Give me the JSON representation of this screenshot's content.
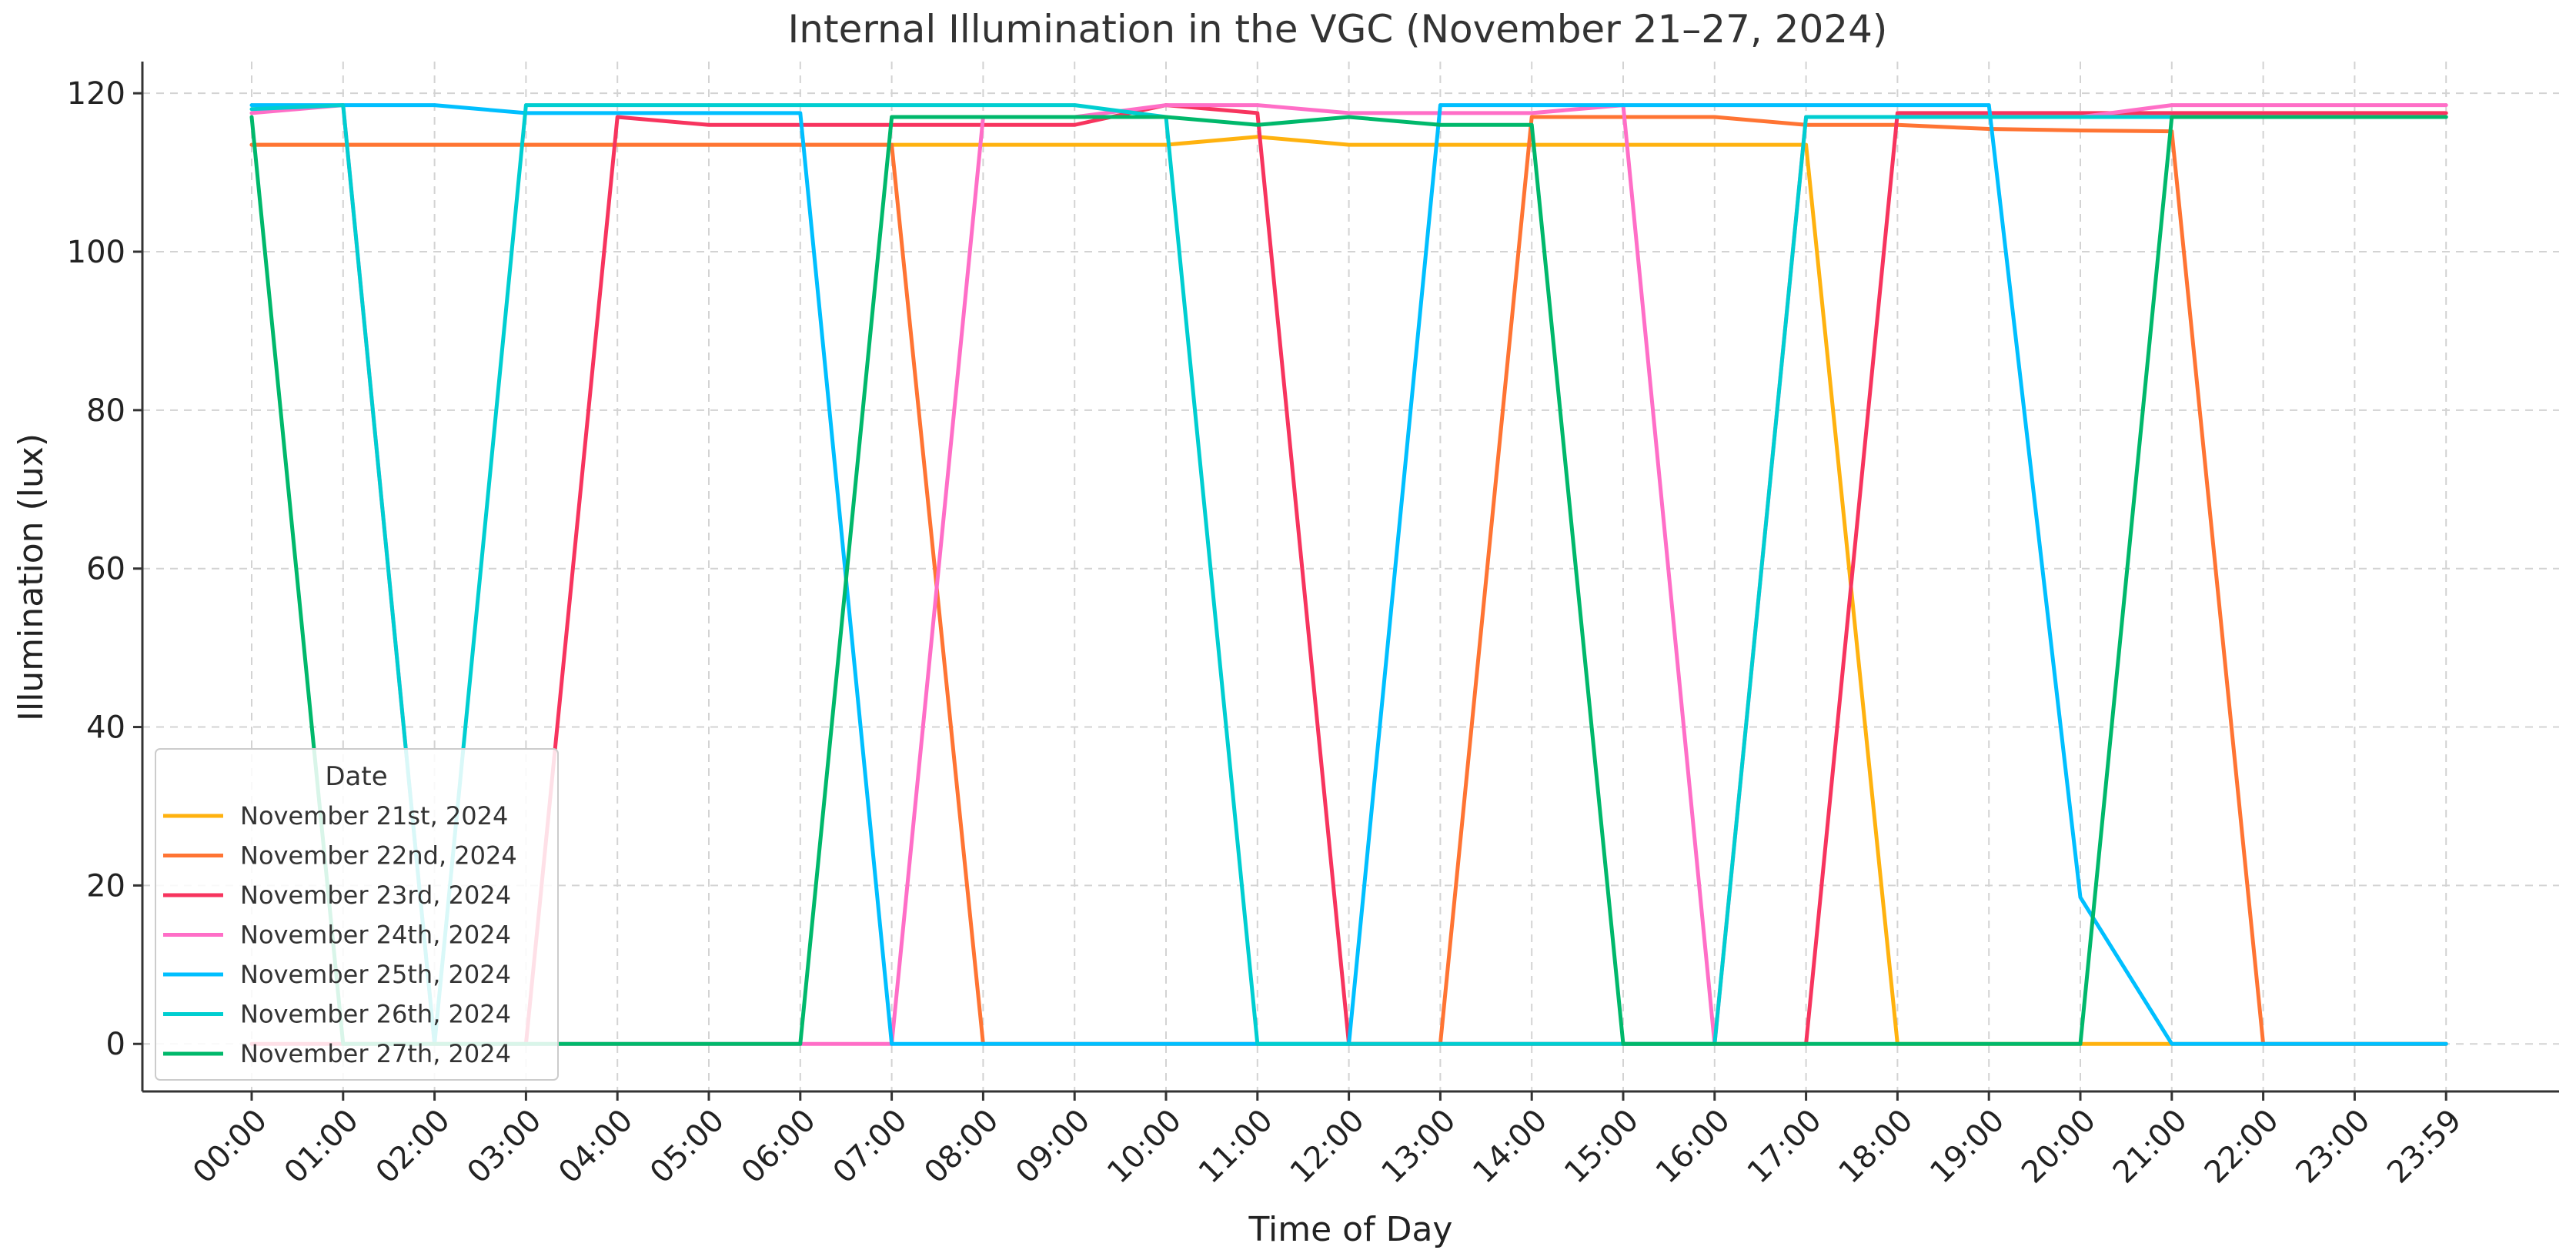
{
  "chart_data": {
    "type": "line",
    "title": "Internal Illumination in the VGC (November 21–27, 2024)",
    "xlabel": "Time of Day",
    "ylabel": "Illumination (lux)",
    "x": [
      "00:00",
      "01:00",
      "02:00",
      "03:00",
      "04:00",
      "05:00",
      "06:00",
      "07:00",
      "08:00",
      "09:00",
      "10:00",
      "11:00",
      "12:00",
      "13:00",
      "14:00",
      "15:00",
      "16:00",
      "17:00",
      "18:00",
      "19:00",
      "20:00",
      "21:00",
      "22:00",
      "23:00",
      "23:59"
    ],
    "ylim": [
      -6,
      124
    ],
    "yticks": [
      0,
      20,
      40,
      60,
      80,
      100,
      120
    ],
    "grid": true,
    "legend": {
      "title": "Date",
      "position": "lower-left"
    },
    "series": [
      {
        "name": "November 21st, 2024",
        "color": "#FFB20F",
        "values": [
          113.5,
          113.5,
          113.5,
          113.5,
          113.5,
          113.5,
          113.5,
          113.5,
          113.5,
          113.5,
          113.5,
          114.5,
          113.5,
          113.5,
          113.5,
          113.5,
          113.5,
          113.5,
          0,
          0,
          0,
          0,
          0,
          0,
          0
        ]
      },
      {
        "name": "November 22nd, 2024",
        "color": "#FF7433",
        "values": [
          113.5,
          113.5,
          113.5,
          113.5,
          113.5,
          113.5,
          113.5,
          113.5,
          0,
          0,
          0,
          0,
          0,
          0,
          117,
          117,
          117,
          116,
          116,
          115.5,
          115.3,
          115.2,
          0,
          0,
          0
        ]
      },
      {
        "name": "November 23rd, 2024",
        "color": "#F7345E",
        "values": [
          0,
          0,
          0,
          0,
          117,
          116,
          116,
          116,
          116,
          116,
          118.5,
          117.5,
          0,
          0,
          0,
          0,
          0,
          0,
          117.5,
          117.5,
          117.5,
          117.5,
          117.5,
          117.5,
          117.5
        ]
      },
      {
        "name": "November 24th, 2024",
        "color": "#FF6EC7",
        "values": [
          117.5,
          118.5,
          0,
          0,
          0,
          0,
          0,
          0,
          117,
          117,
          118.5,
          118.5,
          117.5,
          117.5,
          117.5,
          118.5,
          0,
          117,
          117,
          117,
          117,
          118.5,
          118.5,
          118.5,
          118.5
        ]
      },
      {
        "name": "November 25th, 2024",
        "color": "#00BFFF",
        "values": [
          118.5,
          118.5,
          118.5,
          117.5,
          117.5,
          117.5,
          117.5,
          0,
          0,
          0,
          0,
          0,
          0,
          118.5,
          118.5,
          118.5,
          118.5,
          118.5,
          118.5,
          118.5,
          18.5,
          0,
          0,
          0,
          0
        ]
      },
      {
        "name": "November 26th, 2024",
        "color": "#00CED1",
        "values": [
          118,
          118.5,
          0,
          118.5,
          118.5,
          118.5,
          118.5,
          118.5,
          118.5,
          118.5,
          117,
          0,
          0,
          0,
          0,
          0,
          0,
          117,
          117,
          117,
          117,
          117,
          117,
          117,
          117
        ]
      },
      {
        "name": "November 27th, 2024",
        "color": "#00B86B",
        "values": [
          117,
          0,
          0,
          0,
          0,
          0,
          0,
          117,
          117,
          117,
          117,
          116,
          117,
          116,
          116,
          0,
          0,
          0,
          0,
          0,
          0,
          117,
          117,
          117,
          117
        ]
      }
    ]
  },
  "colors": {
    "grid": "#d3d3d3",
    "axis": "#333333"
  }
}
